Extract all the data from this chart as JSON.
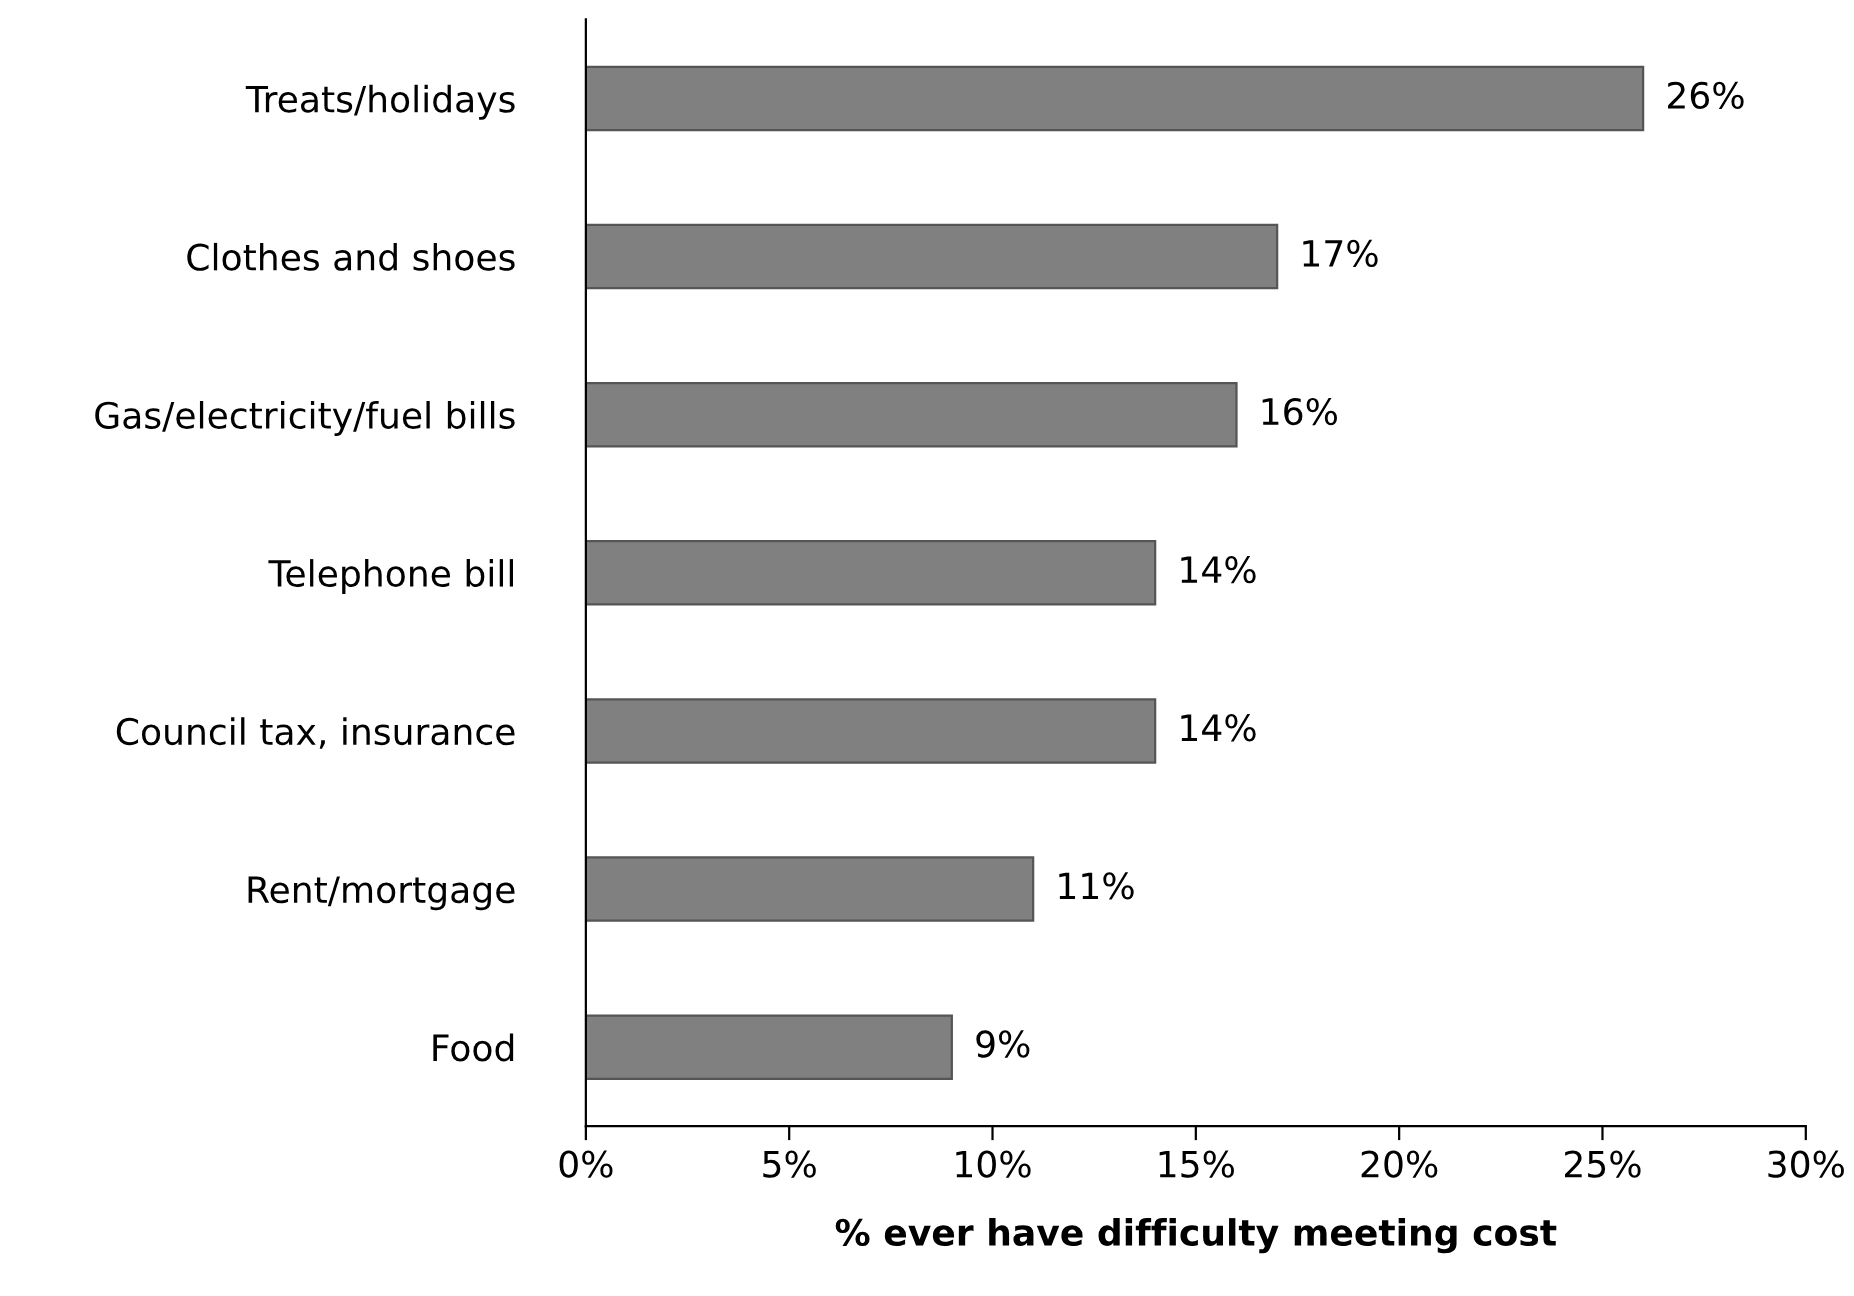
{
  "chart_data": {
    "type": "bar",
    "orientation": "horizontal",
    "xlabel": "% ever have difficulty meeting cost",
    "categories": [
      "Treats/holidays",
      "Clothes and shoes",
      "Gas/electricity/fuel bills",
      "Telephone bill",
      "Council tax, insurance",
      "Rent/mortgage",
      "Food"
    ],
    "values": [
      26,
      17,
      16,
      14,
      14,
      11,
      9
    ],
    "value_labels": [
      "26%",
      "17%",
      "16%",
      "14%",
      "14%",
      "11%",
      "9%"
    ],
    "color": "#808080",
    "xlim": [
      0,
      30
    ],
    "xticks": [
      {
        "value": 0,
        "label": "0%"
      },
      {
        "value": 5,
        "label": "5%"
      },
      {
        "value": 10,
        "label": "10%"
      },
      {
        "value": 15,
        "label": "15%"
      },
      {
        "value": 20,
        "label": "20%"
      },
      {
        "value": 25,
        "label": "25%"
      },
      {
        "value": 30,
        "label": "30%"
      }
    ],
    "grid": false,
    "legend": false
  }
}
